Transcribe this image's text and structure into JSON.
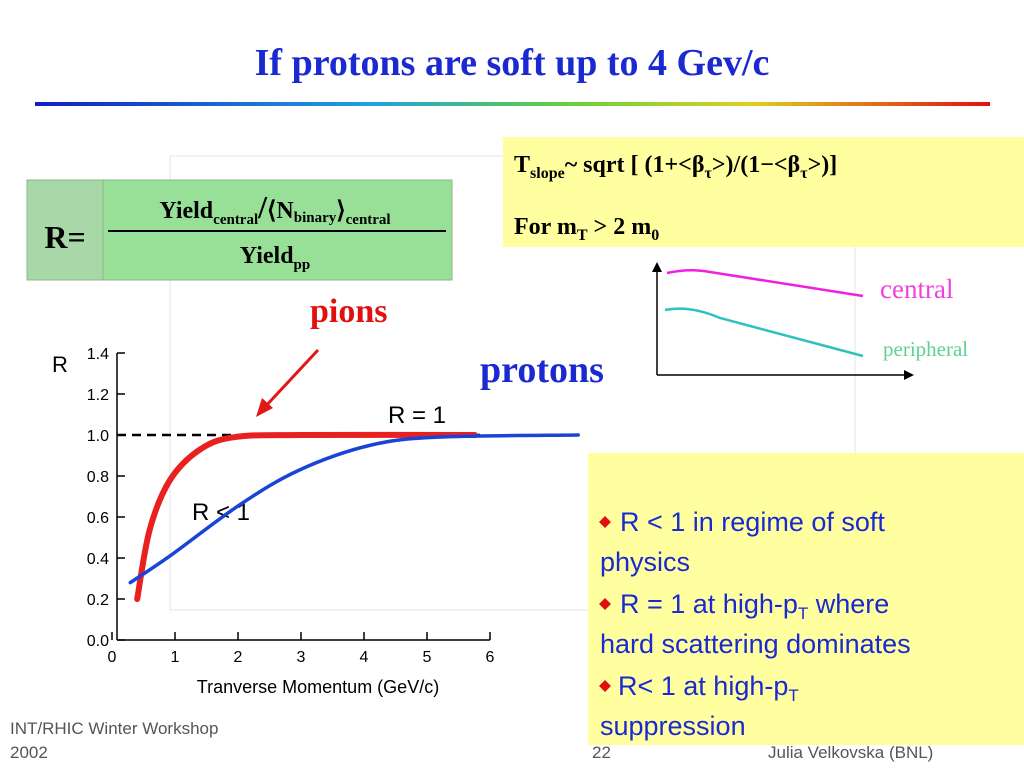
{
  "title": "If protons are soft up to 4 Gev/c",
  "formula": {
    "lhs": "R=",
    "num_main": "Yield",
    "num_sub": "central",
    "slash": "/",
    "nbin_open": "⟨N",
    "nbin_sub": "binary",
    "nbin_close": "⟩",
    "nbin_sub2": "central",
    "den_main": "Yield",
    "den_sub": "pp"
  },
  "slope_box": {
    "line1": [
      "T",
      "slope",
      "~ sqrt [ (1+<β",
      "τ",
      ">)/(1−<β",
      "τ",
      ">)]"
    ],
    "line2": [
      "For m",
      "T",
      " > 2 m",
      "0"
    ]
  },
  "inset": {
    "central": "central",
    "peripheral": "peripheral"
  },
  "annotations": {
    "pions": "pions",
    "protons": "protons"
  },
  "chart_data": {
    "type": "line",
    "ylabel": "R",
    "xlabel": "Tranverse Momentum (GeV/c)",
    "xlim": [
      0,
      6
    ],
    "ylim": [
      0,
      1.4
    ],
    "xticks": [
      0,
      1,
      2,
      3,
      4,
      5,
      6
    ],
    "yticks": [
      {
        "value": 0,
        "label": "0.0"
      },
      0.2,
      0.4,
      0.6,
      0.8,
      {
        "value": 1,
        "label": "1.0"
      },
      1.2,
      1.4
    ],
    "reference_y": 1,
    "reference_label": "R = 1",
    "below_label": "R < 1",
    "series": [
      {
        "color": "#e82020",
        "x": [
          0.4,
          0.6,
          0.92,
          1.4,
          1.95,
          3,
          5.76
        ],
        "values": [
          0.2,
          0.54,
          0.78,
          0.93,
          0.99,
          1.0,
          1.0
        ]
      },
      {
        "color": "#1a44d6",
        "x": [
          0.29,
          0.92,
          2.03,
          2.98,
          4.1,
          5.2,
          7.4
        ],
        "values": [
          0.28,
          0.41,
          0.66,
          0.83,
          0.95,
          0.99,
          1.0
        ]
      }
    ]
  },
  "bullets": {
    "b1": [
      "R < 1 in regime of soft",
      "physics"
    ],
    "b2": [
      "R = 1 at high-p",
      "T",
      " where",
      "hard scattering dominates"
    ],
    "b3": [
      "R< 1  at high-p",
      "T",
      "suppression"
    ]
  },
  "footer": {
    "left": [
      "INT/RHIC Winter Workshop",
      "2002"
    ],
    "page": "22",
    "author": "Julia Velkovska (BNL)"
  }
}
